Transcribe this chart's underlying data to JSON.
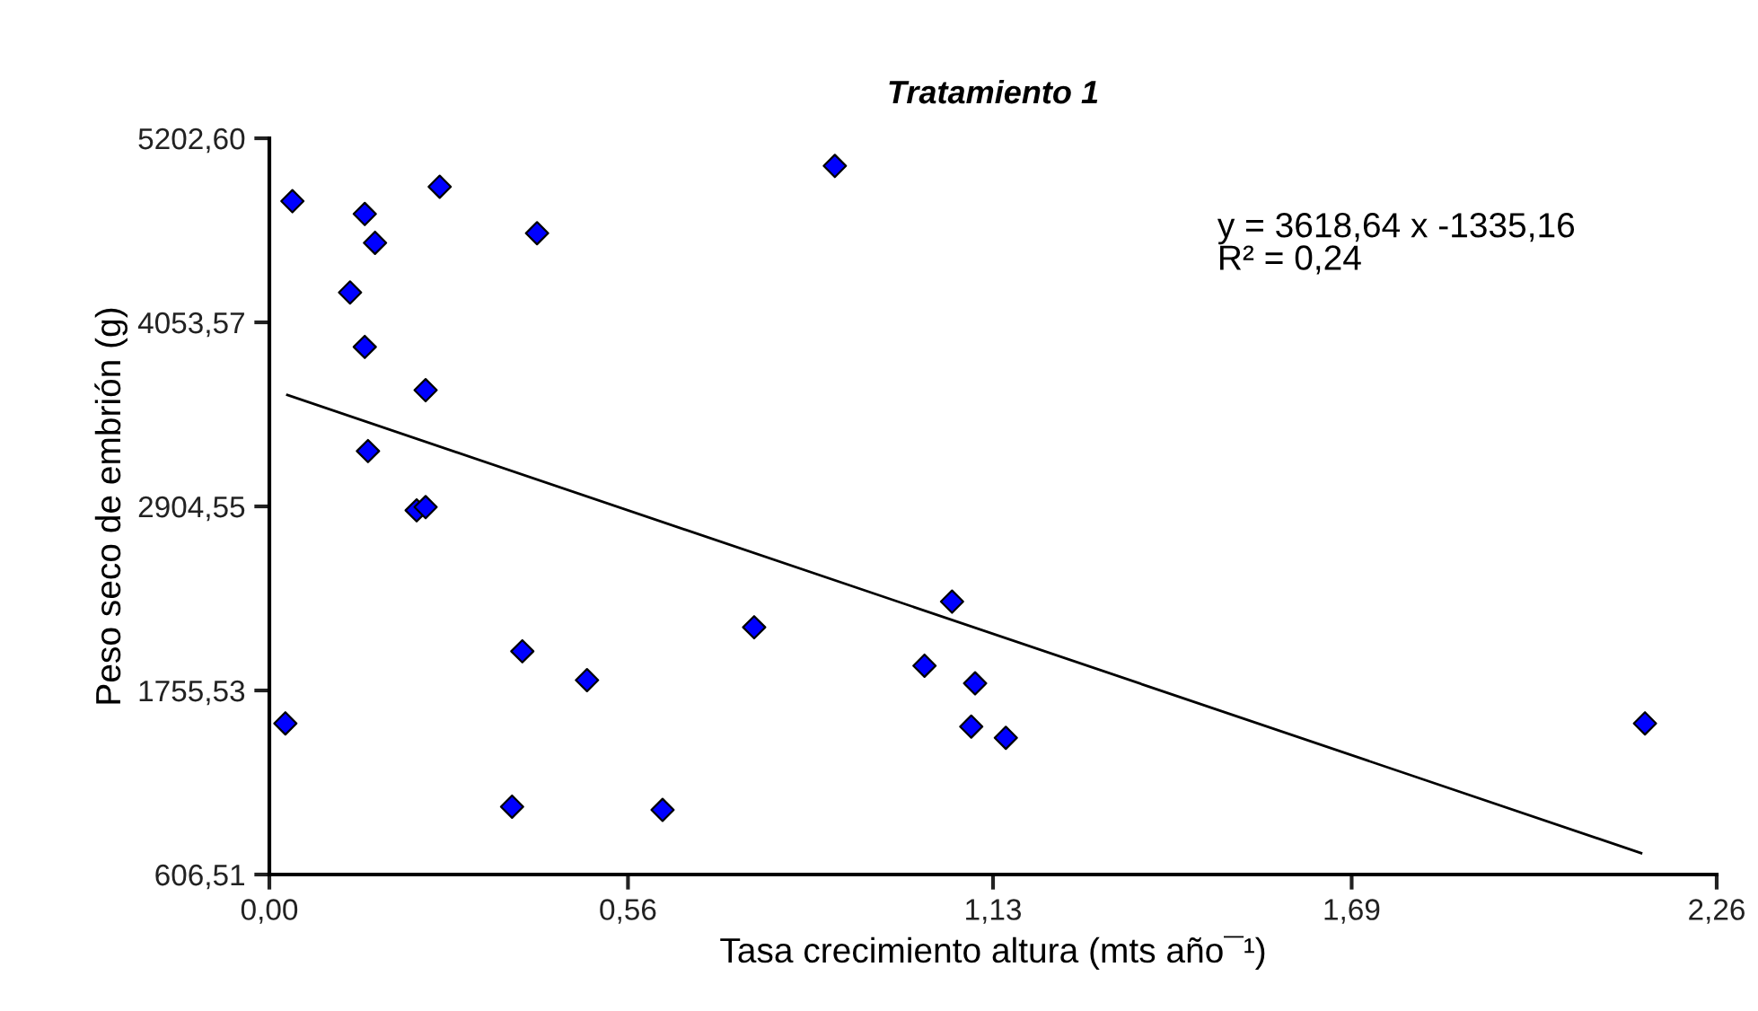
{
  "chart_data": {
    "type": "scatter",
    "title": "Tratamiento 1",
    "xlabel": "Tasa crecimiento altura (mts año¯¹)",
    "ylabel": "Peso seco de embrión (g)",
    "xlim": [
      0,
      2.26
    ],
    "ylim": [
      606.51,
      5202.6
    ],
    "xticks": [
      {
        "value": 0,
        "label": "0,00"
      },
      {
        "value": 0.56,
        "label": "0,56"
      },
      {
        "value": 1.13,
        "label": "1,13"
      },
      {
        "value": 1.69,
        "label": "1,69"
      },
      {
        "value": 2.26,
        "label": "2,26"
      }
    ],
    "yticks": [
      {
        "value": 606.51,
        "label": "606,51"
      },
      {
        "value": 1755.53,
        "label": "1755,53"
      },
      {
        "value": 2904.55,
        "label": "2904,55"
      },
      {
        "value": 4053.57,
        "label": "4053,57"
      },
      {
        "value": 5202.6,
        "label": "5202,60"
      }
    ],
    "grid": false,
    "series": [
      {
        "marker": "diamond",
        "color": "#0000ff",
        "x": [
          0.036,
          0.149,
          0.266,
          0.165,
          0.418,
          0.126,
          0.149,
          0.244,
          0.154,
          0.23,
          0.244,
          0.883,
          0.025,
          0.395,
          0.496,
          0.379,
          0.614,
          0.757,
          1.066,
          1.023,
          1.102,
          1.096,
          1.15,
          2.148
        ],
        "values": [
          4810,
          4730,
          4900,
          4550,
          4610,
          4240,
          3900,
          3630,
          3250,
          2880,
          2900,
          5030,
          1550,
          2000,
          1820,
          1030,
          1010,
          2150,
          2310,
          1910,
          1800,
          1530,
          1460,
          1550
        ]
      },
      {
        "type": "line",
        "marker": "none",
        "color": "#000000",
        "x": [
          0.028,
          2.142
        ],
        "values": [
          3600,
          740
        ]
      }
    ],
    "annotations": [
      "y = 3618,64 x -1335,16\nR² = 0,24"
    ]
  }
}
